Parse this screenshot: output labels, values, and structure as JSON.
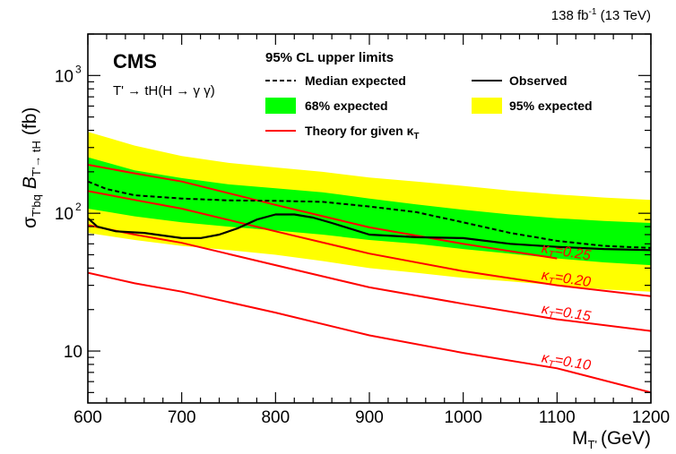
{
  "header": {
    "lumi_main": "138 fb",
    "lumi_sup": "-1",
    "lumi_energy": " (13 TeV)"
  },
  "labels": {
    "cms": "CMS",
    "process": "T' → tH(H → γ γ)",
    "legend_title": "95% CL upper limits",
    "ylabel_main": "σ",
    "ylabel_sub1": "T'bq",
    "ylabel_mid": "B",
    "ylabel_sub2": "T'→ tH",
    "ylabel_unit": "(fb)",
    "xlabel_main": "M",
    "xlabel_sub": "T'",
    "xlabel_unit": "(GeV)"
  },
  "legend": [
    {
      "label": "Median expected",
      "style": "dashed-line",
      "color": "#000000"
    },
    {
      "label": "Observed",
      "style": "solid-line",
      "color": "#000000"
    },
    {
      "label": "68% expected",
      "style": "box",
      "color": "#00ff00"
    },
    {
      "label": "95% expected",
      "style": "box",
      "color": "#ffff00"
    },
    {
      "label": "Theory for given κ",
      "sub": "T",
      "style": "solid-line",
      "color": "#ff0000"
    }
  ],
  "chart_data": {
    "type": "line",
    "xlabel": "M_T' (GeV)",
    "ylabel": "σ_T'bq B_T'→tH (fb)",
    "xlim": [
      600,
      1200
    ],
    "ylim": [
      4.2,
      2000
    ],
    "yscale": "log",
    "x_ticks": [
      600,
      700,
      800,
      900,
      1000,
      1100,
      1200
    ],
    "y_tick_labels": [
      {
        "value": 10,
        "label": "10"
      },
      {
        "value": 100,
        "label": "10",
        "sup": "2"
      },
      {
        "value": 1000,
        "label": "10",
        "sup": "3"
      }
    ],
    "colors": {
      "band95": "#ffff00",
      "band68": "#00ff00",
      "theory": "#ff0000",
      "observed": "#000000"
    },
    "band95": {
      "x": [
        600,
        650,
        700,
        750,
        800,
        850,
        900,
        950,
        1000,
        1050,
        1100,
        1150,
        1200
      ],
      "lower": [
        72,
        64,
        58,
        54,
        50,
        45,
        40,
        37,
        34,
        32,
        30,
        28,
        27
      ],
      "upper": [
        390,
        310,
        260,
        232,
        215,
        200,
        182,
        170,
        158,
        146,
        137,
        130,
        125
      ]
    },
    "band68": {
      "x": [
        600,
        650,
        700,
        750,
        800,
        850,
        900,
        950,
        1000,
        1050,
        1100,
        1150,
        1200
      ],
      "lower": [
        108,
        95,
        86,
        80,
        75,
        70,
        64,
        60,
        55,
        51,
        47,
        44,
        42
      ],
      "upper": [
        255,
        205,
        180,
        162,
        152,
        142,
        128,
        116,
        106,
        98,
        92,
        88,
        85
      ]
    },
    "median_expected": {
      "x": [
        600,
        620,
        650,
        700,
        750,
        800,
        850,
        900,
        950,
        1000,
        1050,
        1100,
        1150,
        1200
      ],
      "y": [
        170,
        150,
        135,
        128,
        124,
        123,
        121,
        112,
        102,
        86,
        72,
        63,
        58,
        56
      ]
    },
    "observed": {
      "x": [
        600,
        610,
        630,
        660,
        680,
        700,
        720,
        740,
        760,
        780,
        800,
        820,
        840,
        860,
        900,
        950,
        1000,
        1050,
        1100,
        1150,
        1200
      ],
      "y": [
        92,
        80,
        74,
        72,
        69,
        66,
        66,
        70,
        78,
        90,
        98,
        98,
        93,
        85,
        70,
        67,
        66,
        60,
        57,
        55,
        54
      ]
    },
    "theory": [
      {
        "kappa_label": "κ",
        "kappa_sub": "T",
        "kappa_value": "=0.25",
        "x": [
          600,
          650,
          700,
          800,
          900,
          1000,
          1100
        ],
        "y": [
          225,
          195,
          170,
          115,
          79,
          60,
          47
        ]
      },
      {
        "kappa_label": "κ",
        "kappa_sub": "T",
        "kappa_value": "=0.20",
        "x": [
          600,
          650,
          700,
          800,
          900,
          1000,
          1100,
          1200
        ],
        "y": [
          145,
          125,
          108,
          74,
          51,
          38,
          30,
          25
        ]
      },
      {
        "kappa_label": "κ",
        "kappa_sub": "T",
        "kappa_value": "=0.15",
        "x": [
          600,
          650,
          700,
          800,
          900,
          1000,
          1100,
          1200
        ],
        "y": [
          82,
          70,
          61,
          42,
          29,
          22,
          17,
          14
        ]
      },
      {
        "kappa_label": "κ",
        "kappa_sub": "T",
        "kappa_value": "=0.10",
        "x": [
          600,
          650,
          700,
          800,
          900,
          1000,
          1100,
          1200
        ],
        "y": [
          37,
          31,
          27,
          19,
          13,
          9.7,
          7.5,
          5.0
        ]
      }
    ]
  }
}
